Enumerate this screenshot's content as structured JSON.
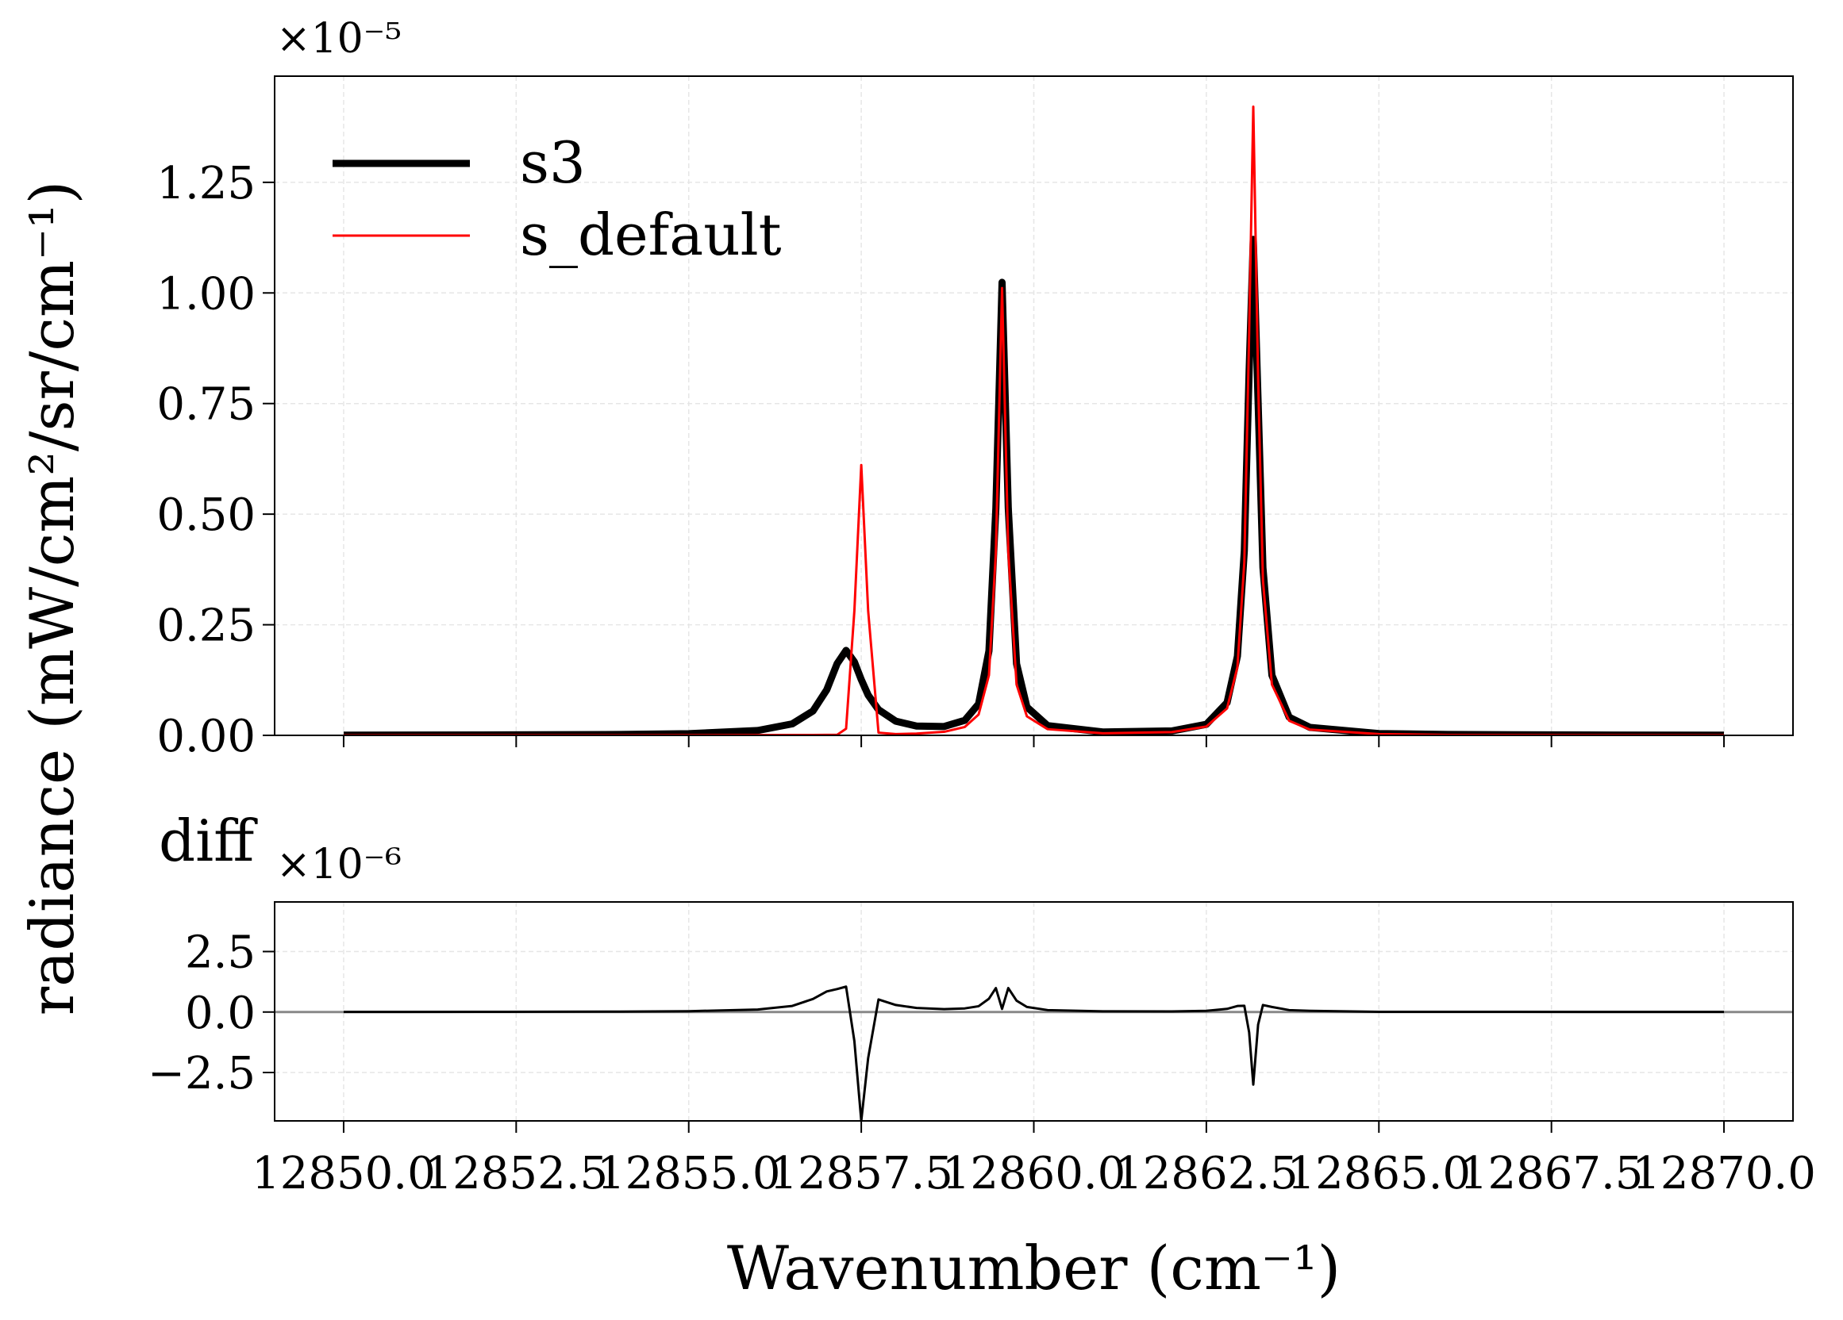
{
  "chart_data": [
    {
      "type": "line",
      "ylabel": "radiance (mW/cm²/sr/cm⁻¹)",
      "offset_text": "×10⁻⁵",
      "legend": "upper left",
      "grid": true,
      "show_xticklabels": false,
      "xlim": [
        12849,
        12871
      ],
      "ylim": [
        0,
        1.49
      ],
      "xticks": [
        12850,
        12852.5,
        12855,
        12857.5,
        12860,
        12862.5,
        12865,
        12867.5,
        12870
      ],
      "yticks": [
        {
          "value": 0,
          "label": "0.00"
        },
        {
          "value": 0.25,
          "label": "0.25"
        },
        {
          "value": 0.5,
          "label": "0.50"
        },
        {
          "value": 0.75,
          "label": "0.75"
        },
        {
          "value": 1,
          "label": "1.00"
        },
        {
          "value": 1.25,
          "label": "1.25"
        }
      ],
      "x": [
        12850,
        12852,
        12854,
        12855,
        12856,
        12856.5,
        12856.8,
        12857,
        12857.15,
        12857.28,
        12857.4,
        12857.5,
        12857.6,
        12857.75,
        12858,
        12858.3,
        12858.7,
        12859,
        12859.2,
        12859.35,
        12859.45,
        12859.54,
        12859.63,
        12859.75,
        12859.9,
        12860.2,
        12861,
        12862,
        12862.5,
        12862.8,
        12862.95,
        12863.05,
        12863.12,
        12863.18,
        12863.25,
        12863.32,
        12863.45,
        12863.7,
        12864,
        12865,
        12866,
        12868,
        12870
      ],
      "series": [
        {
          "name": "s3",
          "color": "#000000",
          "values": [
            0.0005,
            0.0009,
            0.002,
            0.0038,
            0.011,
            0.026,
            0.055,
            0.103,
            0.162,
            0.192,
            0.166,
            0.126,
            0.091,
            0.058,
            0.032,
            0.021,
            0.02,
            0.034,
            0.071,
            0.191,
            0.513,
            1.024,
            0.514,
            0.162,
            0.064,
            0.022,
            0.0076,
            0.01,
            0.025,
            0.074,
            0.179,
            0.417,
            0.825,
            1.121,
            0.753,
            0.379,
            0.136,
            0.041,
            0.018,
            0.004,
            0.002,
            0.0008,
            0.0005
          ]
        },
        {
          "name": "s_default",
          "color": "#ff0000",
          "values": [
            0.0001,
            0.0002,
            0.0003,
            0.0004,
            0.0006,
            0.0008,
            0.001,
            0.0011,
            0.0012,
            0.015,
            0.281,
            0.611,
            0.281,
            0.006,
            0.003,
            0.004,
            0.008,
            0.019,
            0.047,
            0.136,
            0.414,
            1.011,
            0.415,
            0.115,
            0.043,
            0.014,
            0.0046,
            0.0074,
            0.02,
            0.061,
            0.154,
            0.391,
            0.909,
            1.421,
            0.805,
            0.35,
            0.115,
            0.033,
            0.013,
            0.003,
            0.001,
            0.0004,
            0.0002
          ]
        }
      ]
    },
    {
      "type": "line",
      "title": "diff",
      "xlabel": "Wavenumber (cm⁻¹)",
      "offset_text": "×10⁻⁶",
      "grid": true,
      "show_xticklabels": true,
      "hline": 0,
      "xlim": [
        12849,
        12871
      ],
      "ylim": [
        -4.5,
        4.55
      ],
      "xticks": [
        {
          "value": 12850,
          "label": "12850.0"
        },
        {
          "value": 12852.5,
          "label": "12852.5"
        },
        {
          "value": 12855,
          "label": "12855.0"
        },
        {
          "value": 12857.5,
          "label": "12857.5"
        },
        {
          "value": 12860,
          "label": "12860.0"
        },
        {
          "value": 12862.5,
          "label": "12862.5"
        },
        {
          "value": 12865,
          "label": "12865.0"
        },
        {
          "value": 12867.5,
          "label": "12867.5"
        },
        {
          "value": 12870,
          "label": "12870.0"
        }
      ],
      "yticks": [
        {
          "value": -2.5,
          "label": "−2.5"
        },
        {
          "value": 0,
          "label": "0.0"
        },
        {
          "value": 2.5,
          "label": "2.5"
        }
      ],
      "x": [
        12850,
        12852,
        12854,
        12855,
        12856,
        12856.5,
        12856.8,
        12857,
        12857.15,
        12857.28,
        12857.4,
        12857.5,
        12857.6,
        12857.75,
        12858,
        12858.3,
        12858.7,
        12859,
        12859.2,
        12859.35,
        12859.45,
        12859.54,
        12859.63,
        12859.75,
        12859.9,
        12860.2,
        12861,
        12862,
        12862.5,
        12862.8,
        12862.95,
        12863.05,
        12863.12,
        12863.18,
        12863.25,
        12863.32,
        12863.45,
        12863.7,
        12864,
        12865,
        12866,
        12868,
        12870
      ],
      "series": [
        {
          "color": "#000000",
          "values": [
            0.004,
            0.007,
            0.017,
            0.034,
            0.104,
            0.252,
            0.54,
            0.85,
            0.95,
            1.05,
            -1.2,
            -4.5,
            -1.9,
            0.52,
            0.29,
            0.17,
            0.12,
            0.15,
            0.24,
            0.55,
            0.99,
            0.13,
            0.99,
            0.47,
            0.21,
            0.08,
            0.03,
            0.026,
            0.05,
            0.13,
            0.25,
            0.26,
            -0.84,
            -3.0,
            -0.52,
            0.29,
            0.21,
            0.08,
            0.05,
            0.01,
            0.01,
            0.004,
            0.003
          ]
        }
      ]
    }
  ]
}
